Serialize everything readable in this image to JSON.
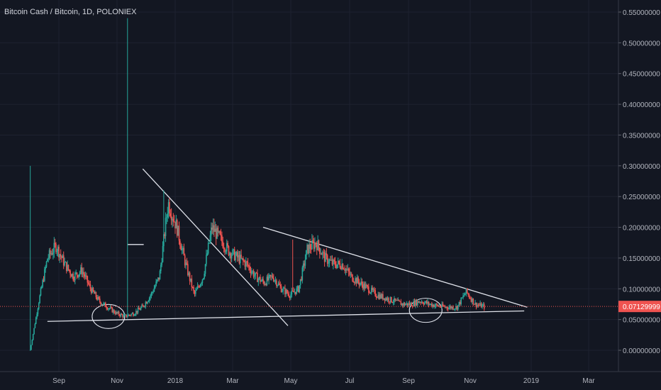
{
  "header": {
    "title": "Bitcoin Cash / Bitcoin, 1D, POLONIEX"
  },
  "colors": {
    "background": "#131722",
    "up": "#26a69a",
    "down": "#ef5350",
    "drawing": "#e0e3eb",
    "last_price_line": "#ef5350"
  },
  "chart_data": {
    "type": "candlestick",
    "title": "Bitcoin Cash / Bitcoin, 1D, POLONIEX",
    "y_ticks": [
      "0.55000000",
      "0.50000000",
      "0.45000000",
      "0.40000000",
      "0.35000000",
      "0.30000000",
      "0.25000000",
      "0.20000000",
      "0.15000000",
      "0.10000000",
      "0.05000000",
      "0.00000000"
    ],
    "y_range": [
      -0.005,
      0.56
    ],
    "x_ticks": [
      "Sep",
      "Nov",
      "2018",
      "Mar",
      "May",
      "Jul",
      "Sep",
      "Nov",
      "2019",
      "Mar"
    ],
    "last_price": "0.07129999",
    "grid": true,
    "series": [
      {
        "date_range": [
          "2017-08-02",
          "2018-11-15"
        ],
        "approx_close_values": [
          0.0,
          0.08,
          0.15,
          0.17,
          0.14,
          0.12,
          0.13,
          0.1,
          0.08,
          0.07,
          0.06,
          0.055,
          0.06,
          0.07,
          0.09,
          0.12,
          0.24,
          0.2,
          0.14,
          0.09,
          0.12,
          0.2,
          0.18,
          0.16,
          0.15,
          0.14,
          0.12,
          0.11,
          0.12,
          0.1,
          0.09,
          0.1,
          0.165,
          0.175,
          0.15,
          0.14,
          0.14,
          0.12,
          0.11,
          0.1,
          0.09,
          0.085,
          0.08,
          0.075,
          0.075,
          0.08,
          0.075,
          0.072,
          0.07,
          0.07,
          0.095,
          0.075,
          0.071
        ],
        "notable_highs": [
          {
            "date": "2017-08-02",
            "value": 0.3
          },
          {
            "date": "2017-11-12",
            "value": 0.54
          },
          {
            "date": "2017-12-20",
            "value": 0.26
          },
          {
            "date": "2018-05-03",
            "value": 0.18
          }
        ]
      }
    ],
    "annotations": [
      {
        "type": "trendline",
        "label": "descending trendline 1",
        "from": {
          "date": "2017-11-28",
          "value": 0.295
        },
        "to": {
          "date": "2018-04-28",
          "value": 0.04
        }
      },
      {
        "type": "trendline",
        "label": "descending trendline 2",
        "from": {
          "date": "2018-04-02",
          "value": 0.2
        },
        "to": {
          "date": "2018-12-28",
          "value": 0.07
        }
      },
      {
        "type": "trendline",
        "label": "ascending support line",
        "from": {
          "date": "2017-08-20",
          "value": 0.047
        },
        "to": {
          "date": "2018-12-25",
          "value": 0.064
        }
      },
      {
        "type": "horizontal_segment",
        "label": "marker",
        "date_range": [
          "2017-11-12",
          "2017-11-29"
        ],
        "value": 0.172
      },
      {
        "type": "ellipse",
        "label": "support circle 1",
        "center": {
          "date": "2017-10-23",
          "value": 0.055
        }
      },
      {
        "type": "ellipse",
        "label": "support circle 2",
        "center": {
          "date": "2018-09-18",
          "value": 0.065
        }
      }
    ]
  }
}
